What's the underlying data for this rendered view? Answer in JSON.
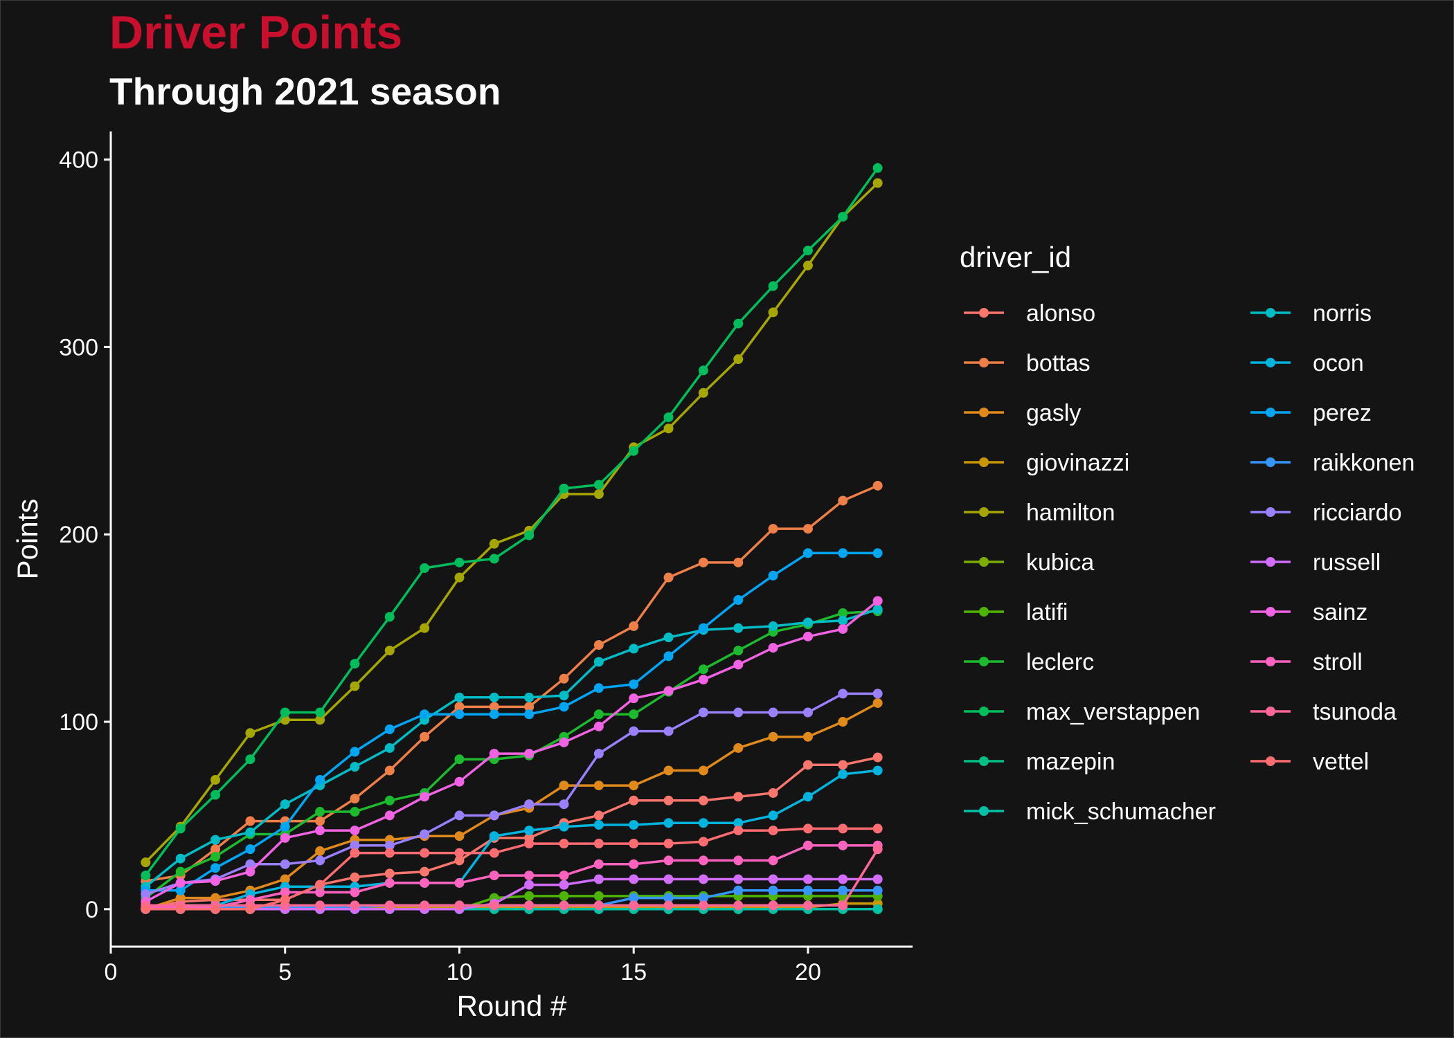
{
  "chart_data": {
    "type": "line",
    "title": "Driver Points",
    "subtitle": "Through 2021 season",
    "xlabel": "Round #",
    "ylabel": "Points",
    "xlim": [
      0,
      23
    ],
    "ylim": [
      -20,
      415
    ],
    "xticks": [
      0,
      5,
      10,
      15,
      20
    ],
    "yticks": [
      0,
      100,
      200,
      300,
      400
    ],
    "grid": false,
    "legend_title": "driver_id",
    "legend_position": "right",
    "x": [
      1,
      2,
      3,
      4,
      5,
      6,
      7,
      8,
      9,
      10,
      11,
      12,
      13,
      14,
      15,
      16,
      17,
      18,
      19,
      20,
      21,
      22
    ],
    "series": [
      {
        "name": "alonso",
        "color": "#F8766D",
        "values": [
          0,
          4,
          5,
          5,
          5,
          13,
          17,
          19,
          20,
          26,
          38,
          38,
          46,
          50,
          58,
          58,
          58,
          60,
          62,
          77,
          77,
          81
        ]
      },
      {
        "name": "bottas",
        "color": "#EF7F48",
        "values": [
          15,
          18,
          32,
          47,
          47,
          47,
          59,
          74,
          92,
          108,
          108,
          108,
          123,
          141,
          151,
          177,
          185,
          185,
          203,
          203,
          218,
          226
        ]
      },
      {
        "name": "gasly",
        "color": "#DF8A1B",
        "values": [
          0,
          6,
          6,
          10,
          16,
          31,
          37,
          37,
          39,
          39,
          50,
          54,
          66,
          66,
          66,
          74,
          74,
          86,
          92,
          92,
          100,
          110
        ]
      },
      {
        "name": "giovinazzi",
        "color": "#C99800",
        "values": [
          0,
          0,
          0,
          0,
          0,
          1,
          1,
          1,
          1,
          1,
          1,
          1,
          1,
          1,
          1,
          1,
          1,
          1,
          1,
          1,
          3,
          3
        ]
      },
      {
        "name": "hamilton",
        "color": "#A6A600",
        "values": [
          25,
          44,
          69,
          94,
          101,
          101,
          119,
          138,
          150,
          177,
          195,
          202,
          221.5,
          221.5,
          246.5,
          256.5,
          275.5,
          293.5,
          318.5,
          343.5,
          369.5,
          387.5
        ]
      },
      {
        "name": "kubica",
        "color": "#7CAE00",
        "values": [
          0,
          0,
          0,
          0,
          0,
          0,
          0,
          0,
          0,
          0,
          0,
          0,
          0,
          0,
          0,
          0,
          0,
          0,
          0,
          0,
          0,
          0
        ]
      },
      {
        "name": "latifi",
        "color": "#4EB400",
        "values": [
          0,
          0,
          0,
          0,
          0,
          0,
          0,
          0,
          0,
          0,
          6,
          7,
          7,
          7,
          7,
          7,
          7,
          7,
          7,
          7,
          7,
          7
        ]
      },
      {
        "name": "leclerc",
        "color": "#1DB92E",
        "values": [
          6,
          20,
          28,
          40,
          40,
          52,
          52,
          58,
          62,
          80,
          80,
          82,
          92,
          104,
          104,
          116,
          128,
          138,
          148,
          152,
          158,
          159
        ]
      },
      {
        "name": "max_verstappen",
        "color": "#00BD5C",
        "values": [
          18,
          43,
          61,
          80,
          105,
          105,
          131,
          156,
          182,
          185,
          187,
          199.5,
          224.5,
          226.5,
          244.5,
          262.5,
          287.5,
          312.5,
          332.5,
          351.5,
          369.5,
          395.5
        ]
      },
      {
        "name": "mazepin",
        "color": "#00BF85",
        "values": [
          0,
          0,
          0,
          0,
          0,
          0,
          0,
          0,
          0,
          0,
          0,
          0,
          0,
          0,
          0,
          0,
          0,
          0,
          0,
          0,
          0,
          0
        ]
      },
      {
        "name": "mick_schumacher",
        "color": "#00C0A6",
        "values": [
          0,
          0,
          0,
          0,
          0,
          0,
          0,
          0,
          0,
          0,
          0,
          0,
          0,
          0,
          0,
          0,
          0,
          0,
          0,
          0,
          0,
          0
        ]
      },
      {
        "name": "norris",
        "color": "#00BCC4",
        "values": [
          12,
          27,
          37,
          41,
          56,
          66,
          76,
          86,
          101,
          113,
          113,
          113,
          114,
          132,
          139,
          145,
          149,
          150,
          151,
          153,
          154,
          160
        ]
      },
      {
        "name": "ocon",
        "color": "#00B4DE",
        "values": [
          0,
          2,
          2,
          8,
          12,
          12,
          12,
          14,
          14,
          14,
          39,
          42,
          44,
          45,
          45,
          46,
          46,
          46,
          50,
          60,
          72,
          74
        ]
      },
      {
        "name": "perez",
        "color": "#00A6F2",
        "values": [
          10,
          10,
          22,
          32,
          44,
          69,
          84,
          96,
          104,
          104,
          104,
          104,
          108,
          118,
          120,
          135,
          150,
          165,
          178,
          190,
          190,
          190
        ]
      },
      {
        "name": "raikkonen",
        "color": "#3795FF",
        "values": [
          0,
          1,
          1,
          1,
          1,
          1,
          1,
          2,
          2,
          2,
          2,
          2,
          2,
          2,
          6,
          6,
          6,
          10,
          10,
          10,
          10,
          10
        ]
      },
      {
        "name": "ricciardo",
        "color": "#9A7FFF",
        "values": [
          8,
          14,
          16,
          24,
          24,
          26,
          34,
          34,
          40,
          50,
          50,
          56,
          56,
          83,
          95,
          95,
          105,
          105,
          105,
          105,
          115,
          115
        ]
      },
      {
        "name": "russell",
        "color": "#D26CFB",
        "values": [
          0,
          0,
          0,
          0,
          0,
          0,
          0,
          0,
          0,
          0,
          3,
          13,
          13,
          16,
          16,
          16,
          16,
          16,
          16,
          16,
          16,
          16
        ]
      },
      {
        "name": "sainz",
        "color": "#F163E2",
        "values": [
          4,
          14,
          15,
          20,
          38,
          42,
          42,
          50,
          60,
          68,
          83,
          83,
          89,
          97.5,
          112.5,
          116.5,
          122.5,
          130.5,
          139.5,
          145.5,
          149.5,
          164.5
        ]
      },
      {
        "name": "stroll",
        "color": "#FF62BF",
        "values": [
          1,
          1,
          1,
          5,
          9,
          9,
          9,
          14,
          14,
          14,
          18,
          18,
          18,
          24,
          24,
          26,
          26,
          26,
          26,
          34,
          34,
          34
        ]
      },
      {
        "name": "tsunoda",
        "color": "#FF6797",
        "values": [
          2,
          2,
          2,
          2,
          2,
          2,
          2,
          2,
          2,
          2,
          2,
          2,
          2,
          2,
          2,
          2,
          2,
          2,
          2,
          2,
          2,
          32
        ]
      },
      {
        "name": "vettel",
        "color": "#FF6C72",
        "values": [
          0,
          0,
          0,
          0,
          5,
          13,
          30,
          30,
          30,
          30,
          30,
          35,
          35,
          35,
          35,
          35,
          36,
          42,
          42,
          43,
          43,
          43
        ]
      }
    ]
  }
}
